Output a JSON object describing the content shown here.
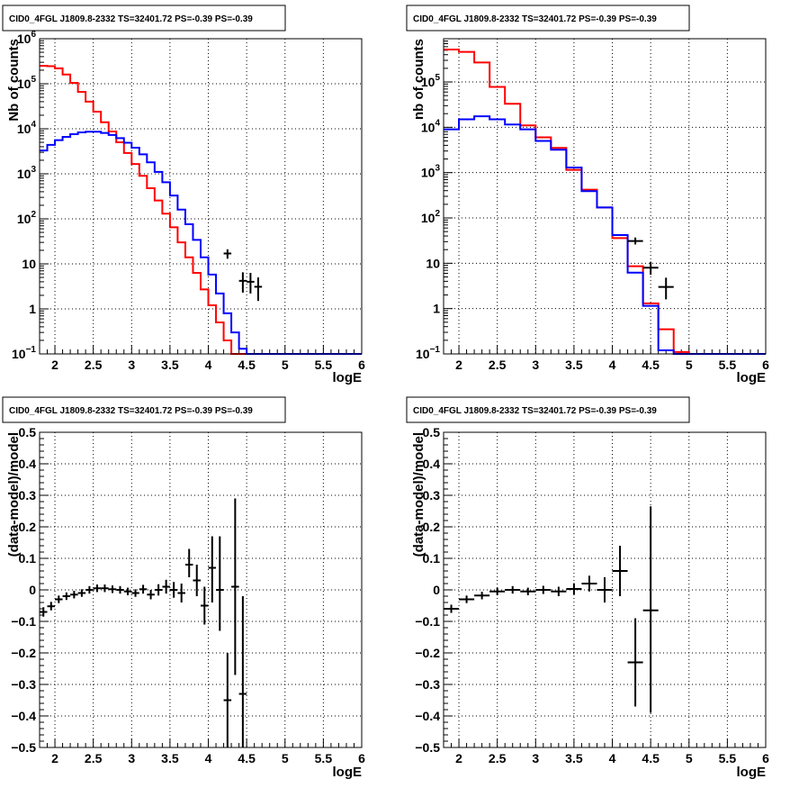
{
  "panels": [
    {
      "title": "CID0_4FGL J1809.8-2332 TS=32401.72 PS=-0.39 PS=-0.39",
      "type": "line",
      "xlabel": "logE",
      "ylabel": "Nb of counts",
      "log_y": true,
      "xlim": [
        1.8,
        6.0
      ],
      "ylim": [
        0.1,
        1000000
      ],
      "grid": true,
      "x_ticks": [
        2,
        2.5,
        3,
        3.5,
        4,
        4.5,
        5,
        5.5,
        6
      ],
      "x_tick_labels": [
        "2",
        "2.5",
        "3",
        "3.5",
        "4",
        "4.5",
        "5",
        "5.5",
        "6"
      ],
      "y_ticks": [
        0.1,
        1,
        10,
        100,
        1000,
        10000,
        100000,
        1000000
      ],
      "y_tick_labels": [
        {
          "base": "10",
          "exp": "−1"
        },
        {
          "base": "1",
          "exp": ""
        },
        {
          "base": "10",
          "exp": ""
        },
        {
          "base": "10",
          "exp": "2"
        },
        {
          "base": "10",
          "exp": "3"
        },
        {
          "base": "10",
          "exp": "4"
        },
        {
          "base": "10",
          "exp": "5"
        },
        {
          "base": "10",
          "exp": "6"
        }
      ],
      "bin_edges": [
        1.8,
        1.9,
        2.0,
        2.1,
        2.2,
        2.3,
        2.4,
        2.5,
        2.6,
        2.7,
        2.8,
        2.9,
        3.0,
        3.1,
        3.2,
        3.3,
        3.4,
        3.5,
        3.6,
        3.7,
        3.8,
        3.9,
        4.0,
        4.1,
        4.2,
        4.3,
        4.4,
        4.5,
        4.6,
        4.7,
        4.8,
        4.9,
        5.0,
        6.0
      ],
      "series": [
        {
          "color": "#ff0000",
          "values": [
            250000,
            245000,
            220000,
            160000,
            105000,
            66000,
            40000,
            24000,
            14000,
            8700,
            5000,
            2900,
            1650,
            900,
            480,
            255,
            130,
            65,
            30,
            14,
            6.3,
            2.7,
            1.2,
            0.5,
            0.2,
            0.1,
            0.1,
            0.1,
            0.1,
            0.1,
            0.1,
            0.1,
            0.1
          ]
        },
        {
          "color": "#0000ff",
          "values": [
            3300,
            4400,
            5600,
            6600,
            7600,
            8300,
            8600,
            8600,
            8100,
            7300,
            6200,
            4900,
            3800,
            2700,
            1800,
            1100,
            650,
            330,
            160,
            76,
            34,
            14,
            5.8,
            2.2,
            0.8,
            0.3,
            0.13,
            0.1,
            0.1,
            0.1,
            0.1,
            0.1,
            0.1
          ]
        }
      ],
      "data_points": [
        {
          "x": 4.25,
          "y": 17,
          "xerr": 0.05,
          "ylo": 13,
          "yhi": 21
        },
        {
          "x": 4.45,
          "y": 4.2,
          "xerr": 0.05,
          "ylo": 2.3,
          "yhi": 6.5
        },
        {
          "x": 4.55,
          "y": 4.0,
          "xerr": 0.05,
          "ylo": 2.2,
          "yhi": 6.3
        },
        {
          "x": 4.65,
          "y": 3.1,
          "xerr": 0.05,
          "ylo": 1.5,
          "yhi": 5.0
        }
      ]
    },
    {
      "title": "CID0_4FGL J1809.8-2332 TS=32401.72 PS=-0.39 PS=-0.39",
      "type": "line",
      "xlabel": "logE",
      "ylabel": "nb of counts",
      "log_y": true,
      "xlim": [
        1.8,
        6.0
      ],
      "ylim": [
        0.1,
        900000
      ],
      "grid": true,
      "x_ticks": [
        2,
        2.5,
        3,
        3.5,
        4,
        4.5,
        5,
        5.5,
        6
      ],
      "x_tick_labels": [
        "2",
        "2.5",
        "3",
        "3.5",
        "4",
        "4.5",
        "5",
        "5.5",
        "6"
      ],
      "y_ticks": [
        0.1,
        1,
        10,
        100,
        1000,
        10000,
        100000
      ],
      "y_tick_labels": [
        {
          "base": "10",
          "exp": "−1"
        },
        {
          "base": "1",
          "exp": ""
        },
        {
          "base": "10",
          "exp": ""
        },
        {
          "base": "10",
          "exp": "2"
        },
        {
          "base": "10",
          "exp": "3"
        },
        {
          "base": "10",
          "exp": "4"
        },
        {
          "base": "10",
          "exp": "5"
        }
      ],
      "bin_edges": [
        1.8,
        2.0,
        2.2,
        2.4,
        2.6,
        2.8,
        3.0,
        3.2,
        3.4,
        3.6,
        3.8,
        4.0,
        4.2,
        4.4,
        4.6,
        4.8,
        5.0,
        6.0
      ],
      "series": [
        {
          "color": "#ff0000",
          "values": [
            520000,
            460000,
            270000,
            78000,
            33000,
            11000,
            6000,
            3500,
            1150,
            420,
            170,
            36,
            8.6,
            1.3,
            0.35,
            0.11,
            0.1
          ]
        },
        {
          "color": "#0000ff",
          "values": [
            9000,
            15000,
            17500,
            15000,
            11500,
            9000,
            5000,
            3200,
            1300,
            390,
            170,
            42,
            6.2,
            1.15,
            0.12,
            0.1,
            0.1
          ]
        }
      ],
      "data_points": [
        {
          "x": 4.3,
          "y": 31,
          "xerr": 0.1,
          "ylo": 26,
          "yhi": 37
        },
        {
          "x": 4.5,
          "y": 8,
          "xerr": 0.1,
          "ylo": 5.6,
          "yhi": 10.8
        },
        {
          "x": 4.7,
          "y": 3,
          "xerr": 0.1,
          "ylo": 1.6,
          "yhi": 4.8
        }
      ]
    },
    {
      "title": "CID0_4FGL J1809.8-2332 TS=32401.72 PS=-0.39 PS=-0.39",
      "type": "scatter",
      "xlabel": "logE",
      "ylabel": "(data-model)/model",
      "log_y": false,
      "xlim": [
        1.8,
        6.0
      ],
      "ylim": [
        -0.5,
        0.5
      ],
      "grid": true,
      "x_ticks": [
        2,
        2.5,
        3,
        3.5,
        4,
        4.5,
        5,
        5.5,
        6
      ],
      "x_tick_labels": [
        "2",
        "2.5",
        "3",
        "3.5",
        "4",
        "4.5",
        "5",
        "5.5",
        "6"
      ],
      "y_ticks": [
        -0.5,
        -0.4,
        -0.3,
        -0.2,
        -0.1,
        0,
        0.1,
        0.2,
        0.3,
        0.4,
        0.5
      ],
      "y_tick_labels": [
        "−0.5",
        "−0.4",
        "−0.3",
        "−0.2",
        "−0.1",
        "0",
        "0.1",
        "0.2",
        "0.3",
        "0.4",
        "0.5"
      ],
      "data_points": [
        {
          "x": 1.85,
          "y": -0.07,
          "xerr": 0.05,
          "ylo": -0.085,
          "yhi": -0.055
        },
        {
          "x": 1.95,
          "y": -0.052,
          "xerr": 0.05,
          "ylo": -0.065,
          "yhi": -0.038
        },
        {
          "x": 2.05,
          "y": -0.03,
          "xerr": 0.05,
          "ylo": -0.042,
          "yhi": -0.018
        },
        {
          "x": 2.15,
          "y": -0.02,
          "xerr": 0.05,
          "ylo": -0.032,
          "yhi": -0.008
        },
        {
          "x": 2.25,
          "y": -0.015,
          "xerr": 0.05,
          "ylo": -0.027,
          "yhi": -0.003
        },
        {
          "x": 2.35,
          "y": -0.01,
          "xerr": 0.05,
          "ylo": -0.022,
          "yhi": 0.002
        },
        {
          "x": 2.45,
          "y": 0.0,
          "xerr": 0.05,
          "ylo": -0.012,
          "yhi": 0.012
        },
        {
          "x": 2.55,
          "y": 0.005,
          "xerr": 0.05,
          "ylo": -0.007,
          "yhi": 0.017
        },
        {
          "x": 2.65,
          "y": 0.005,
          "xerr": 0.05,
          "ylo": -0.007,
          "yhi": 0.017
        },
        {
          "x": 2.75,
          "y": 0.002,
          "xerr": 0.05,
          "ylo": -0.01,
          "yhi": 0.014
        },
        {
          "x": 2.85,
          "y": 0.0,
          "xerr": 0.05,
          "ylo": -0.012,
          "yhi": 0.012
        },
        {
          "x": 2.95,
          "y": -0.005,
          "xerr": 0.05,
          "ylo": -0.017,
          "yhi": 0.007
        },
        {
          "x": 3.05,
          "y": -0.01,
          "xerr": 0.05,
          "ylo": -0.022,
          "yhi": 0.002
        },
        {
          "x": 3.15,
          "y": 0.002,
          "xerr": 0.05,
          "ylo": -0.012,
          "yhi": 0.016
        },
        {
          "x": 3.25,
          "y": -0.015,
          "xerr": 0.05,
          "ylo": -0.03,
          "yhi": 0.0
        },
        {
          "x": 3.35,
          "y": 0.0,
          "xerr": 0.05,
          "ylo": -0.018,
          "yhi": 0.018
        },
        {
          "x": 3.45,
          "y": 0.01,
          "xerr": 0.05,
          "ylo": -0.012,
          "yhi": 0.032
        },
        {
          "x": 3.55,
          "y": 0.0,
          "xerr": 0.05,
          "ylo": -0.025,
          "yhi": 0.025
        },
        {
          "x": 3.65,
          "y": -0.01,
          "xerr": 0.05,
          "ylo": -0.04,
          "yhi": 0.02
        },
        {
          "x": 3.75,
          "y": 0.08,
          "xerr": 0.05,
          "ylo": 0.04,
          "yhi": 0.13
        },
        {
          "x": 3.85,
          "y": 0.03,
          "xerr": 0.05,
          "ylo": -0.02,
          "yhi": 0.08
        },
        {
          "x": 3.95,
          "y": -0.05,
          "xerr": 0.05,
          "ylo": -0.11,
          "yhi": 0.01
        },
        {
          "x": 4.05,
          "y": 0.07,
          "xerr": 0.05,
          "ylo": -0.04,
          "yhi": 0.17
        },
        {
          "x": 4.15,
          "y": 0.0,
          "xerr": 0.05,
          "ylo": -0.13,
          "yhi": 0.17
        },
        {
          "x": 4.25,
          "y": -0.35,
          "xerr": 0.05,
          "ylo": -0.5,
          "yhi": -0.2
        },
        {
          "x": 4.35,
          "y": 0.01,
          "xerr": 0.05,
          "ylo": -0.27,
          "yhi": 0.29
        },
        {
          "x": 4.45,
          "y": -0.33,
          "xerr": 0.05,
          "ylo": -0.5,
          "yhi": -0.02
        }
      ]
    },
    {
      "title": "CID0_4FGL J1809.8-2332 TS=32401.72 PS=-0.39 PS=-0.39",
      "type": "scatter",
      "xlabel": "logE",
      "ylabel": "(data-model)/model",
      "log_y": false,
      "xlim": [
        1.8,
        6.0
      ],
      "ylim": [
        -0.5,
        0.5
      ],
      "grid": true,
      "x_ticks": [
        2,
        2.5,
        3,
        3.5,
        4,
        4.5,
        5,
        5.5,
        6
      ],
      "x_tick_labels": [
        "2",
        "2.5",
        "3",
        "3.5",
        "4",
        "4.5",
        "5",
        "5.5",
        "6"
      ],
      "y_ticks": [
        -0.5,
        -0.4,
        -0.3,
        -0.2,
        -0.1,
        0,
        0.1,
        0.2,
        0.3,
        0.4,
        0.5
      ],
      "y_tick_labels": [
        "−0.5",
        "−0.4",
        "−0.3",
        "−0.2",
        "−0.1",
        "0",
        "0.1",
        "0.2",
        "0.3",
        "0.4",
        "0.5"
      ],
      "data_points": [
        {
          "x": 1.9,
          "y": -0.06,
          "xerr": 0.1,
          "ylo": -0.073,
          "yhi": -0.047
        },
        {
          "x": 2.1,
          "y": -0.03,
          "xerr": 0.1,
          "ylo": -0.042,
          "yhi": -0.018
        },
        {
          "x": 2.3,
          "y": -0.018,
          "xerr": 0.1,
          "ylo": -0.03,
          "yhi": -0.006
        },
        {
          "x": 2.5,
          "y": -0.005,
          "xerr": 0.1,
          "ylo": -0.017,
          "yhi": 0.007
        },
        {
          "x": 2.7,
          "y": 0.0,
          "xerr": 0.1,
          "ylo": -0.012,
          "yhi": 0.012
        },
        {
          "x": 2.9,
          "y": -0.005,
          "xerr": 0.1,
          "ylo": -0.017,
          "yhi": 0.007
        },
        {
          "x": 3.1,
          "y": 0.0,
          "xerr": 0.1,
          "ylo": -0.013,
          "yhi": 0.013
        },
        {
          "x": 3.3,
          "y": -0.005,
          "xerr": 0.1,
          "ylo": -0.02,
          "yhi": 0.01
        },
        {
          "x": 3.5,
          "y": 0.003,
          "xerr": 0.1,
          "ylo": -0.015,
          "yhi": 0.021
        },
        {
          "x": 3.7,
          "y": 0.02,
          "xerr": 0.1,
          "ylo": -0.005,
          "yhi": 0.045
        },
        {
          "x": 3.9,
          "y": 0.0,
          "xerr": 0.1,
          "ylo": -0.04,
          "yhi": 0.04
        },
        {
          "x": 4.1,
          "y": 0.06,
          "xerr": 0.1,
          "ylo": -0.02,
          "yhi": 0.14
        },
        {
          "x": 4.3,
          "y": -0.23,
          "xerr": 0.1,
          "ylo": -0.37,
          "yhi": -0.09
        },
        {
          "x": 4.5,
          "y": -0.065,
          "xerr": 0.1,
          "ylo": -0.39,
          "yhi": 0.265
        }
      ]
    }
  ]
}
